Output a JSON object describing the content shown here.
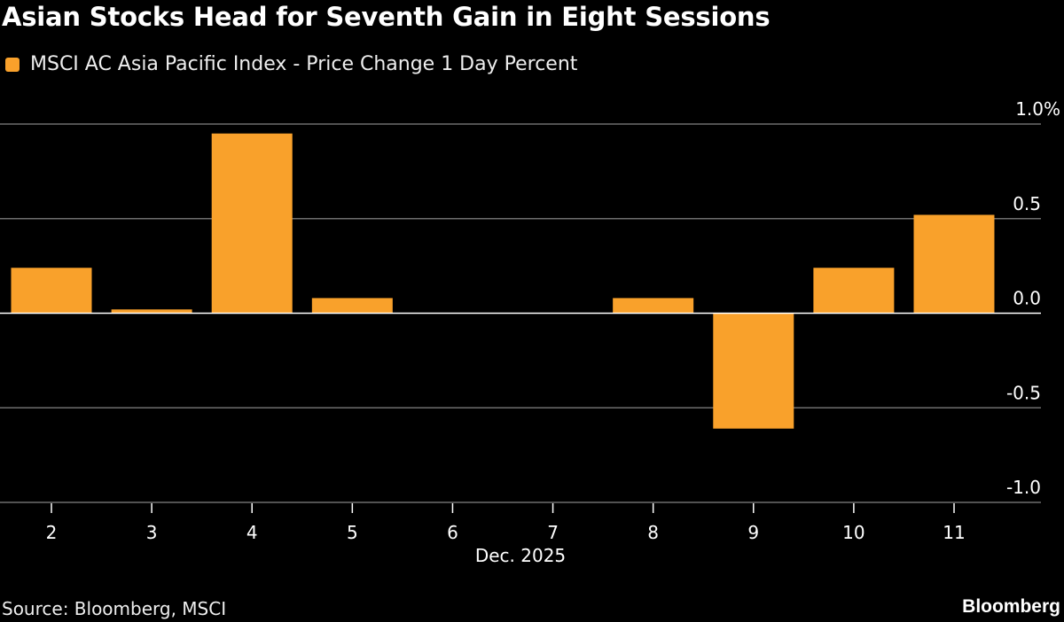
{
  "colors": {
    "bar": "#f9a12b",
    "background": "#000000",
    "grid": "#6e6e6e",
    "zero_line": "#ffffff"
  },
  "chart_data": {
    "type": "bar",
    "title": "Asian Stocks Head for Seventh Gain in Eight Sessions",
    "legend": [
      {
        "name": "MSCI AC Asia Pacific Index - Price Change 1 Day Percent",
        "color": "#f9a12b"
      }
    ],
    "legend_placement": "top-left",
    "categories": [
      "2",
      "3",
      "4",
      "5",
      "6",
      "7",
      "8",
      "9",
      "10",
      "11"
    ],
    "series": [
      {
        "name": "MSCI AC Asia Pacific Index - Price Change 1 Day Percent",
        "values": [
          0.24,
          0.02,
          0.95,
          0.08,
          0,
          0,
          0.08,
          -0.61,
          0.24,
          0.52
        ]
      }
    ],
    "xlabel": "Dec. 2025",
    "ylabel": "",
    "ylim": [
      -1.0,
      1.0
    ],
    "yticks": [
      {
        "v": 1.0,
        "label": "1.0%"
      },
      {
        "v": 0.5,
        "label": "0.5"
      },
      {
        "v": 0.0,
        "label": "0.0"
      },
      {
        "v": -0.5,
        "label": "-0.5"
      },
      {
        "v": -1.0,
        "label": "-1.0"
      }
    ],
    "yaxis_position": "right",
    "grid": true
  },
  "footer": {
    "source": "Source: Bloomberg, MSCI",
    "logo": "Bloomberg"
  }
}
